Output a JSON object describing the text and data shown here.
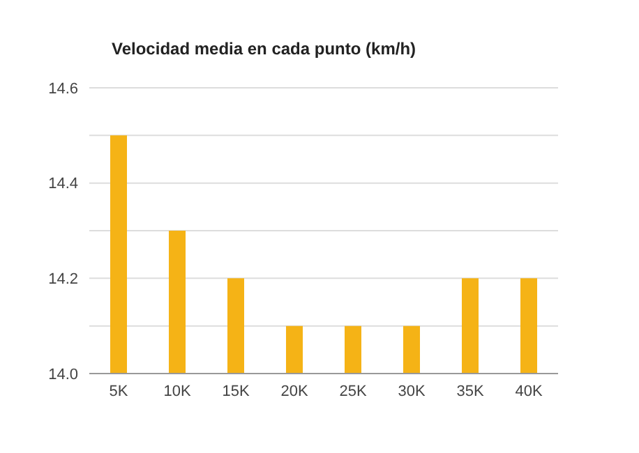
{
  "chart_data": {
    "type": "bar",
    "title": "Velocidad media en cada punto (km/h)",
    "categories": [
      "5K",
      "10K",
      "15K",
      "20K",
      "25K",
      "30K",
      "35K",
      "40K"
    ],
    "values": [
      14.5,
      14.3,
      14.2,
      14.1,
      14.1,
      14.1,
      14.2,
      14.2
    ],
    "color": "#f5b316",
    "ylim": [
      14.0,
      14.6
    ],
    "yticks": [
      {
        "value": 14.0,
        "label": "14.0"
      },
      {
        "value": 14.1,
        "label": null
      },
      14.2,
      {
        "value": 14.3,
        "label": null
      },
      14.4,
      {
        "value": 14.5,
        "label": null
      },
      14.6
    ],
    "grid": "y",
    "legend": false
  }
}
